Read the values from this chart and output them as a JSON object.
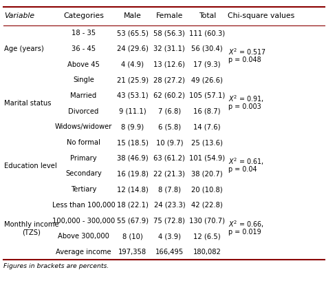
{
  "headers": [
    "Variable",
    "Categories",
    "Male",
    "Female",
    "Total",
    "Chi-square values"
  ],
  "rows": [
    [
      "Age (years)",
      "18 - 35",
      "53 (65.5)",
      "58 (56.3)",
      "111 (60.3)",
      ""
    ],
    [
      "",
      "36 - 45",
      "24 (29.6)",
      "32 (31.1)",
      "56 (30.4)",
      "chi"
    ],
    [
      "",
      "Above 45",
      "4 (4.9)",
      "13 (12.6)",
      "17 (9.3)",
      ""
    ],
    [
      "",
      "Single",
      "21 (25.9)",
      "28 (27.2)",
      "49 (26.6)",
      ""
    ],
    [
      "Marital status",
      "Married",
      "43 (53.1)",
      "62 (60.2)",
      "105 (57.1)",
      "chi"
    ],
    [
      "",
      "Divorced",
      "9 (11.1)",
      "7 (6.8)",
      "16 (8.7)",
      ""
    ],
    [
      "",
      "Widows/widower",
      "8 (9.9)",
      "6 (5.8)",
      "14 (7.6)",
      ""
    ],
    [
      "Education level",
      "No formal",
      "15 (18.5)",
      "10 (9.7)",
      "25 (13.6)",
      ""
    ],
    [
      "",
      "Primary",
      "38 (46.9)",
      "63 (61.2)",
      "101 (54.9)",
      "chi"
    ],
    [
      "",
      "Secondary",
      "16 (19.8)",
      "22 (21.3)",
      "38 (20.7)",
      ""
    ],
    [
      "",
      "Tertiary",
      "12 (14.8)",
      "8 (7.8)",
      "20 (10.8)",
      ""
    ],
    [
      "Monthly income\n(TZS)",
      "Less than 100,000",
      "18 (22.1)",
      "24 (23.3)",
      "42 (22.8)",
      ""
    ],
    [
      "",
      "100,000 - 300,000",
      "55 (67.9)",
      "75 (72.8)",
      "130 (70.7)",
      "chi"
    ],
    [
      "",
      "Above 300,000",
      "8 (10)",
      "4 (3.9)",
      "12 (6.5)",
      ""
    ],
    [
      "",
      "Average income",
      "197,358",
      "166,495",
      "180,082",
      ""
    ]
  ],
  "footnote": "Figures in brackets are percents.",
  "top_line_color": "#8B0000",
  "bottom_line_color": "#8B0000",
  "header_line_color": "#8B0000",
  "bg_color": "#FFFFFF",
  "text_color": "#000000",
  "font_size": 7.2,
  "header_font_size": 7.8,
  "var_label_spans": [
    {
      "label": "Age (years)",
      "r_start": 0,
      "r_end": 2
    },
    {
      "label": "Marital status",
      "r_start": 3,
      "r_end": 6
    },
    {
      "label": "Education level",
      "r_start": 7,
      "r_end": 10
    },
    {
      "label": "Monthly income\n(TZS)",
      "r_start": 11,
      "r_end": 14
    }
  ],
  "chi_spans": [
    {
      "r_start": 1,
      "r_end": 2,
      "line1": "X² = 0.517",
      "line2": "p = 0.048"
    },
    {
      "r_start": 4,
      "r_end": 5,
      "line1": "X² = 0.91,",
      "line2": "p = 0.003"
    },
    {
      "r_start": 8,
      "r_end": 9,
      "line1": "X² = 0.61,",
      "line2": "p = 0.04"
    },
    {
      "r_start": 12,
      "r_end": 13,
      "line1": "X² = 0.66,",
      "line2": "p = 0.019"
    }
  ]
}
